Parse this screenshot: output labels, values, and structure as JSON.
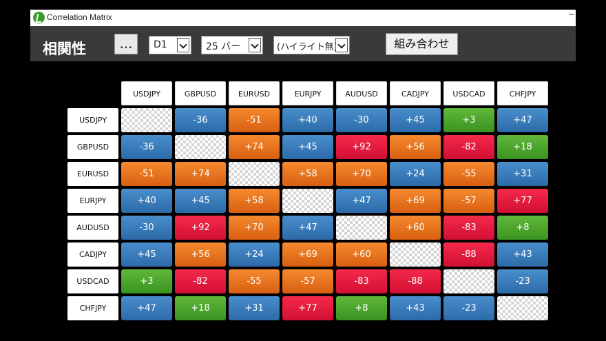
{
  "window": {
    "title": "Correlation Matrix"
  },
  "toolbar": {
    "title": "相関性",
    "more_label": "...",
    "timeframe": "D1",
    "bars": "25 バー",
    "highlight": "(ハイライト無)",
    "combo_label": "組み合わせ"
  },
  "matrix": {
    "symbols": [
      "USDJPY",
      "GBPUSD",
      "EURUSD",
      "EURJPY",
      "AUDUSD",
      "CADJPY",
      "USDCAD",
      "CHFJPY"
    ],
    "colors": {
      "blue": "#3a7dbd",
      "orange": "#ec7620",
      "red": "#e81c40",
      "green": "#4ca62e"
    },
    "rows": [
      [
        "",
        "-36",
        "-51",
        "+40",
        "-30",
        "+45",
        "+3",
        "+47"
      ],
      [
        "-36",
        "",
        "+74",
        "+45",
        "+92",
        "+56",
        "-82",
        "+18"
      ],
      [
        "-51",
        "+74",
        "",
        "+58",
        "+70",
        "+24",
        "-55",
        "+31"
      ],
      [
        "+40",
        "+45",
        "+58",
        "",
        "+47",
        "+69",
        "-57",
        "+77"
      ],
      [
        "-30",
        "+92",
        "+70",
        "+47",
        "",
        "+60",
        "-83",
        "+8"
      ],
      [
        "+45",
        "+56",
        "+24",
        "+69",
        "+60",
        "",
        "-88",
        "+43"
      ],
      [
        "+3",
        "-82",
        "-55",
        "-57",
        "-83",
        "-88",
        "",
        "-23"
      ],
      [
        "+47",
        "+18",
        "+31",
        "+77",
        "+8",
        "+43",
        "-23",
        ""
      ]
    ],
    "cell_colors": [
      [
        "empty",
        "blue",
        "orange",
        "blue",
        "blue",
        "blue",
        "green",
        "blue"
      ],
      [
        "blue",
        "empty",
        "orange",
        "blue",
        "red",
        "orange",
        "red",
        "green"
      ],
      [
        "orange",
        "orange",
        "empty",
        "orange",
        "orange",
        "blue",
        "orange",
        "blue"
      ],
      [
        "blue",
        "blue",
        "orange",
        "empty",
        "blue",
        "orange",
        "orange",
        "red"
      ],
      [
        "blue",
        "red",
        "orange",
        "blue",
        "empty",
        "orange",
        "red",
        "green"
      ],
      [
        "blue",
        "orange",
        "blue",
        "orange",
        "orange",
        "empty",
        "red",
        "blue"
      ],
      [
        "green",
        "red",
        "orange",
        "orange",
        "red",
        "red",
        "empty",
        "blue"
      ],
      [
        "blue",
        "green",
        "blue",
        "red",
        "green",
        "blue",
        "blue",
        "empty"
      ]
    ]
  }
}
